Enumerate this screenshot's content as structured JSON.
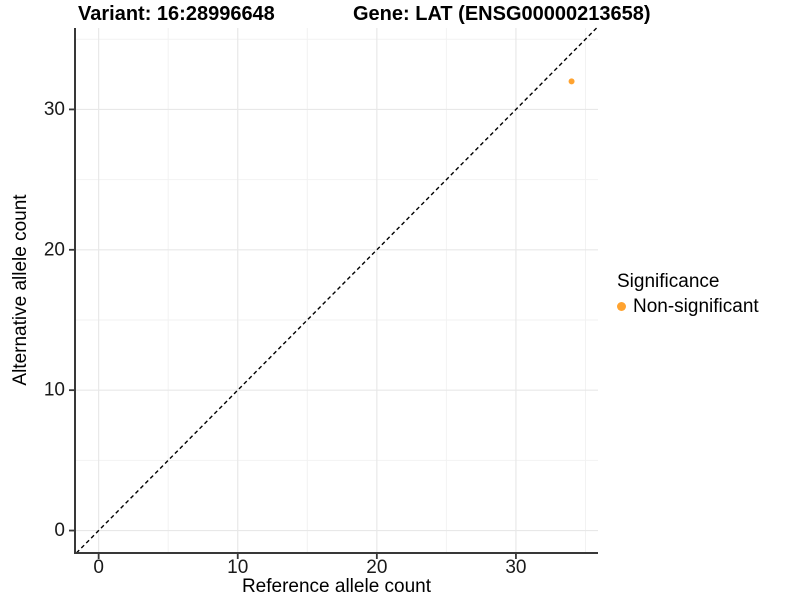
{
  "chart_data": {
    "type": "scatter",
    "title_left": "Variant: 16:28996648",
    "title_right": "Gene: LAT (ENSG00000213658)",
    "xlabel": "Reference allele count",
    "ylabel": "Alternative allele count",
    "xlim": [
      -1.7,
      35.9
    ],
    "ylim": [
      -1.6,
      35.8
    ],
    "x_ticks": [
      0,
      10,
      20,
      30
    ],
    "y_ticks": [
      0,
      10,
      20,
      30
    ],
    "x_minor_ticks": [
      5,
      15,
      25,
      35
    ],
    "y_minor_ticks": [
      5,
      15,
      25,
      35
    ],
    "grid": "major+minor",
    "identity_line": {
      "slope": 1,
      "intercept": 0,
      "style": "dashed",
      "color": "#000000"
    },
    "series": [
      {
        "name": "Non-significant",
        "color": "#FFA330",
        "points": [
          [
            34,
            32
          ]
        ]
      }
    ],
    "legend": {
      "title": "Significance",
      "position": "right",
      "items": [
        {
          "label": "Non-significant",
          "color": "#FFA330"
        }
      ]
    }
  },
  "colors": {
    "background": "#FFFFFF",
    "axis_line": "#383838",
    "tick_mark": "#383838",
    "tick_text": "#1A1A1A",
    "grid_major": "#E8E8E8",
    "grid_minor": "#F2F2F2"
  }
}
